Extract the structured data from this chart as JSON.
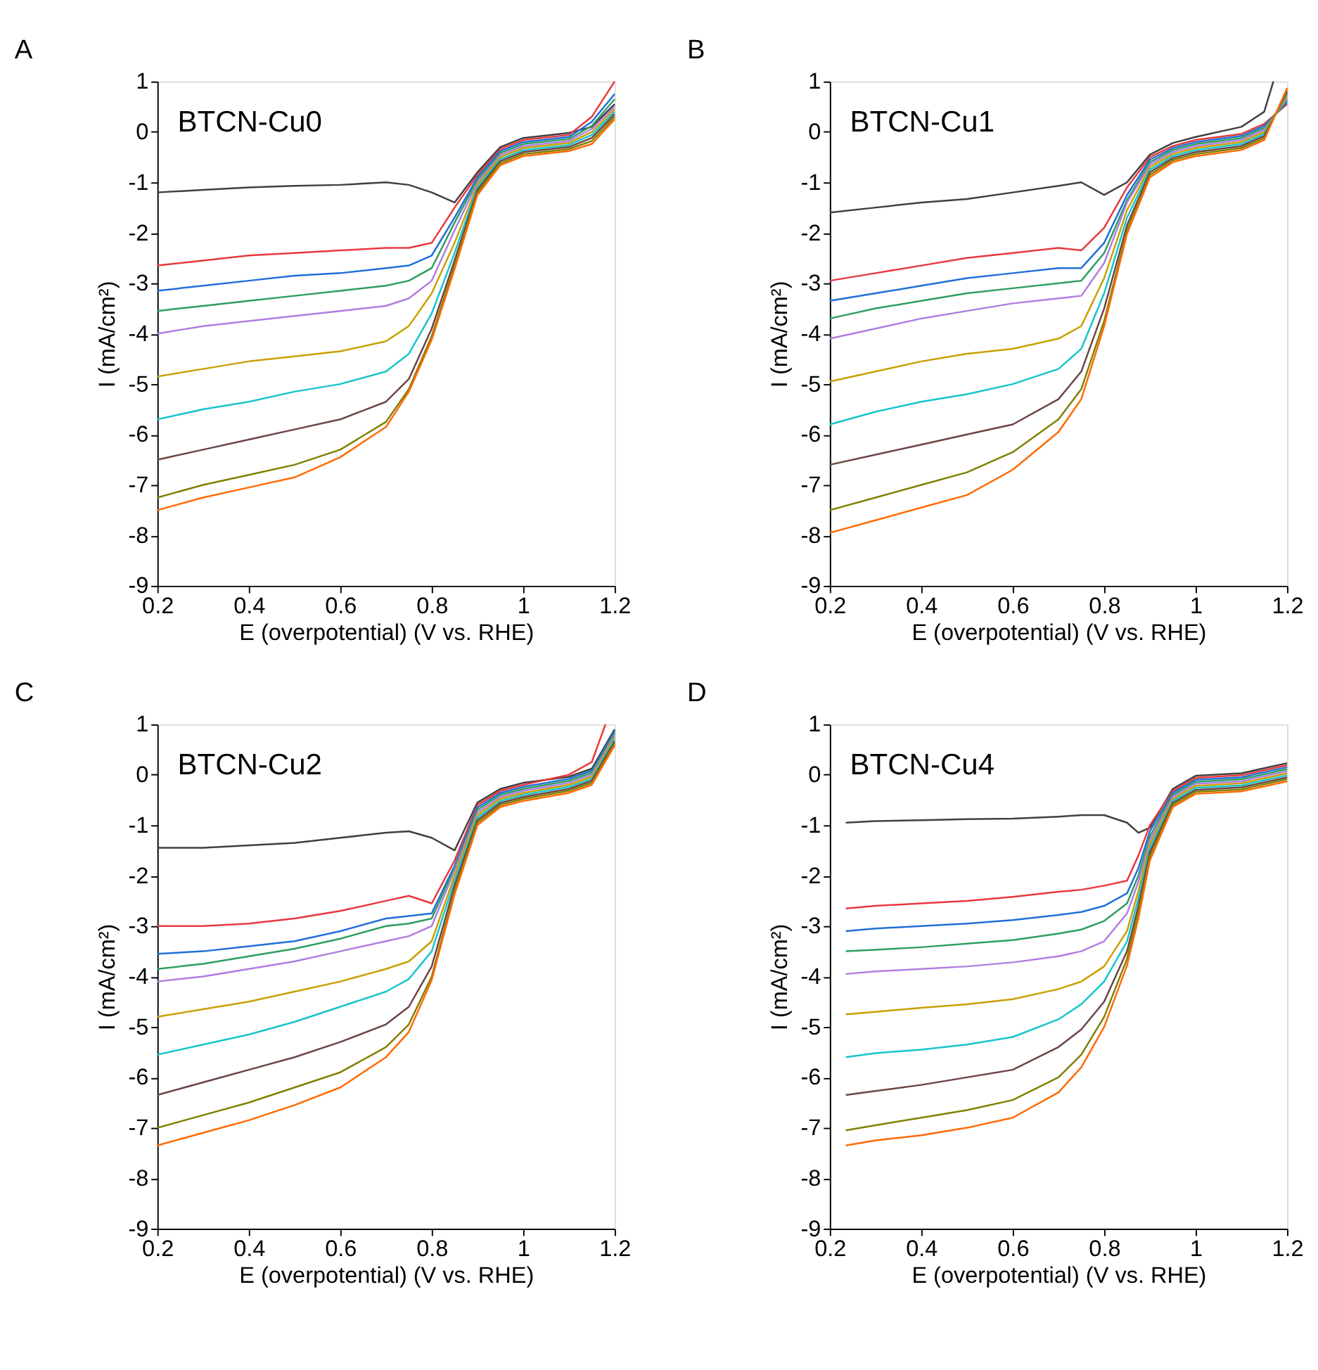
{
  "chart_data": [
    {
      "type": "line",
      "title": "A",
      "annotations": [
        "BTCN-Cu0"
      ],
      "xlabel": "E (overpotential) (V vs. RHE)",
      "ylabel": "I (mA/cm²)",
      "xlim": [
        0.2,
        1.2
      ],
      "ylim": [
        -9,
        1
      ],
      "xticks": [
        0.2,
        0.4,
        0.6,
        0.8,
        1,
        1.2
      ],
      "yticks": [
        -9,
        -8,
        -7,
        -6,
        -5,
        -4,
        -3,
        -2,
        -1,
        0,
        1
      ],
      "grid": false,
      "legend": false,
      "marker": "none",
      "line_style": "solid",
      "x": [
        0.2,
        0.3,
        0.4,
        0.5,
        0.6,
        0.7,
        0.75,
        0.8,
        0.85,
        0.9,
        0.95,
        1.0,
        1.1,
        1.15,
        1.2
      ],
      "series": [
        {
          "color": "#404040",
          "values": [
            -1.2,
            -1.15,
            -1.1,
            -1.07,
            -1.05,
            -1.0,
            -1.05,
            -1.2,
            -1.4,
            -0.8,
            -0.3,
            -0.12,
            -0.02,
            0.1,
            0.55
          ]
        },
        {
          "color": "#e8383d",
          "values": [
            -2.65,
            -2.55,
            -2.45,
            -2.4,
            -2.35,
            -2.3,
            -2.3,
            -2.2,
            -1.5,
            -0.85,
            -0.34,
            -0.16,
            -0.06,
            0.3,
            1.0
          ]
        },
        {
          "color": "#1f6fd6",
          "values": [
            -3.15,
            -3.05,
            -2.95,
            -2.85,
            -2.8,
            -2.7,
            -2.65,
            -2.45,
            -1.7,
            -0.9,
            -0.38,
            -0.2,
            -0.1,
            0.2,
            0.75
          ]
        },
        {
          "color": "#2e9e60",
          "values": [
            -3.55,
            -3.45,
            -3.35,
            -3.25,
            -3.15,
            -3.05,
            -2.95,
            -2.7,
            -1.8,
            -0.95,
            -0.42,
            -0.24,
            -0.14,
            0.12,
            0.65
          ]
        },
        {
          "color": "#b07de0",
          "values": [
            -4.0,
            -3.85,
            -3.75,
            -3.65,
            -3.55,
            -3.45,
            -3.3,
            -2.95,
            -1.95,
            -1.0,
            -0.46,
            -0.28,
            -0.18,
            0.06,
            0.5
          ]
        },
        {
          "color": "#c9a000",
          "values": [
            -4.85,
            -4.7,
            -4.55,
            -4.45,
            -4.35,
            -4.15,
            -3.85,
            -3.2,
            -2.2,
            -1.05,
            -0.5,
            -0.32,
            -0.22,
            0.0,
            0.45
          ]
        },
        {
          "color": "#17c4cc",
          "values": [
            -5.7,
            -5.5,
            -5.35,
            -5.15,
            -5.0,
            -4.75,
            -4.4,
            -3.6,
            -2.4,
            -1.1,
            -0.54,
            -0.36,
            -0.26,
            -0.06,
            0.4
          ]
        },
        {
          "color": "#6b4444",
          "values": [
            -6.5,
            -6.3,
            -6.1,
            -5.9,
            -5.7,
            -5.35,
            -4.9,
            -3.9,
            -2.55,
            -1.15,
            -0.58,
            -0.4,
            -0.3,
            -0.12,
            0.35
          ]
        },
        {
          "color": "#808000",
          "values": [
            -7.25,
            -7.0,
            -6.8,
            -6.6,
            -6.3,
            -5.75,
            -5.1,
            -4.05,
            -2.65,
            -1.2,
            -0.62,
            -0.44,
            -0.34,
            -0.18,
            0.3
          ]
        },
        {
          "color": "#ff6a00",
          "values": [
            -7.5,
            -7.25,
            -7.05,
            -6.85,
            -6.45,
            -5.85,
            -5.15,
            -4.12,
            -2.72,
            -1.25,
            -0.66,
            -0.48,
            -0.38,
            -0.24,
            0.25
          ]
        }
      ]
    },
    {
      "type": "line",
      "title": "B",
      "annotations": [
        "BTCN-Cu1"
      ],
      "xlabel": "E (overpotential) (V vs. RHE)",
      "ylabel": "I (mA/cm²)",
      "xlim": [
        0.2,
        1.2
      ],
      "ylim": [
        -9,
        1
      ],
      "xticks": [
        0.2,
        0.4,
        0.6,
        0.8,
        1,
        1.2
      ],
      "yticks": [
        -9,
        -8,
        -7,
        -6,
        -5,
        -4,
        -3,
        -2,
        -1,
        0,
        1
      ],
      "grid": false,
      "legend": false,
      "marker": "none",
      "line_style": "solid",
      "x": [
        0.2,
        0.3,
        0.4,
        0.5,
        0.6,
        0.7,
        0.75,
        0.8,
        0.85,
        0.9,
        0.95,
        1.0,
        1.1,
        1.15,
        1.2
      ],
      "series": [
        {
          "color": "#404040",
          "x": [
            0.2,
            0.3,
            0.4,
            0.5,
            0.6,
            0.7,
            0.75,
            0.8,
            0.85,
            0.9,
            0.95,
            1.0,
            1.1,
            1.15,
            1.17
          ],
          "values": [
            -1.6,
            -1.5,
            -1.4,
            -1.33,
            -1.2,
            -1.07,
            -1.0,
            -1.25,
            -1.0,
            -0.45,
            -0.22,
            -0.1,
            0.1,
            0.4,
            1.0
          ]
        },
        {
          "color": "#e8383d",
          "values": [
            -2.95,
            -2.8,
            -2.65,
            -2.5,
            -2.4,
            -2.3,
            -2.35,
            -1.9,
            -1.1,
            -0.5,
            -0.28,
            -0.16,
            -0.04,
            0.16,
            0.55
          ]
        },
        {
          "color": "#1f6fd6",
          "values": [
            -3.35,
            -3.2,
            -3.05,
            -2.9,
            -2.8,
            -2.7,
            -2.7,
            -2.2,
            -1.25,
            -0.55,
            -0.32,
            -0.2,
            -0.08,
            0.12,
            0.59
          ]
        },
        {
          "color": "#2e9e60",
          "values": [
            -3.7,
            -3.5,
            -3.35,
            -3.2,
            -3.1,
            -3.0,
            -2.95,
            -2.4,
            -1.35,
            -0.6,
            -0.36,
            -0.24,
            -0.12,
            0.08,
            0.63
          ]
        },
        {
          "color": "#b07de0",
          "values": [
            -4.1,
            -3.9,
            -3.7,
            -3.55,
            -3.4,
            -3.3,
            -3.25,
            -2.6,
            -1.4,
            -0.65,
            -0.4,
            -0.28,
            -0.16,
            0.04,
            0.67
          ]
        },
        {
          "color": "#c9a000",
          "values": [
            -4.95,
            -4.75,
            -4.55,
            -4.4,
            -4.3,
            -4.1,
            -3.85,
            -2.9,
            -1.55,
            -0.7,
            -0.44,
            -0.32,
            -0.2,
            0.0,
            0.71
          ]
        },
        {
          "color": "#17c4cc",
          "values": [
            -5.8,
            -5.55,
            -5.35,
            -5.2,
            -5.0,
            -4.7,
            -4.3,
            -3.2,
            -1.7,
            -0.75,
            -0.48,
            -0.36,
            -0.24,
            -0.04,
            0.75
          ]
        },
        {
          "color": "#6b4444",
          "values": [
            -6.6,
            -6.4,
            -6.2,
            -6.0,
            -5.8,
            -5.3,
            -4.75,
            -3.5,
            -1.85,
            -0.8,
            -0.52,
            -0.4,
            -0.28,
            -0.08,
            0.79
          ]
        },
        {
          "color": "#808000",
          "values": [
            -7.5,
            -7.25,
            -7.0,
            -6.75,
            -6.35,
            -5.7,
            -5.1,
            -3.75,
            -1.95,
            -0.85,
            -0.56,
            -0.44,
            -0.32,
            -0.12,
            0.83
          ]
        },
        {
          "color": "#ff6a00",
          "values": [
            -7.95,
            -7.7,
            -7.45,
            -7.2,
            -6.7,
            -5.95,
            -5.3,
            -3.85,
            -2.02,
            -0.9,
            -0.6,
            -0.48,
            -0.36,
            -0.16,
            0.87
          ]
        }
      ]
    },
    {
      "type": "line",
      "title": "C",
      "annotations": [
        "BTCN-Cu2"
      ],
      "xlabel": "E (overpotential) (V vs. RHE)",
      "ylabel": "I (mA/cm²)",
      "xlim": [
        0.2,
        1.2
      ],
      "ylim": [
        -9,
        1
      ],
      "xticks": [
        0.2,
        0.4,
        0.6,
        0.8,
        1,
        1.2
      ],
      "yticks": [
        -9,
        -8,
        -7,
        -6,
        -5,
        -4,
        -3,
        -2,
        -1,
        0,
        1
      ],
      "grid": false,
      "legend": false,
      "marker": "none",
      "line_style": "solid",
      "x": [
        0.2,
        0.3,
        0.4,
        0.5,
        0.6,
        0.7,
        0.75,
        0.8,
        0.85,
        0.9,
        0.95,
        1.0,
        1.1,
        1.15,
        1.2
      ],
      "series": [
        {
          "color": "#404040",
          "values": [
            -1.45,
            -1.45,
            -1.4,
            -1.35,
            -1.25,
            -1.15,
            -1.12,
            -1.25,
            -1.5,
            -0.55,
            -0.28,
            -0.16,
            -0.04,
            0.12,
            0.9
          ]
        },
        {
          "color": "#e8383d",
          "x": [
            0.2,
            0.3,
            0.4,
            0.5,
            0.6,
            0.7,
            0.75,
            0.8,
            0.85,
            0.9,
            0.95,
            1.0,
            1.1,
            1.15,
            1.18
          ],
          "values": [
            -3.0,
            -3.0,
            -2.95,
            -2.85,
            -2.7,
            -2.5,
            -2.4,
            -2.55,
            -1.7,
            -0.6,
            -0.32,
            -0.2,
            0.0,
            0.25,
            1.0
          ]
        },
        {
          "color": "#1f6fd6",
          "values": [
            -3.55,
            -3.5,
            -3.4,
            -3.3,
            -3.1,
            -2.85,
            -2.8,
            -2.75,
            -1.8,
            -0.65,
            -0.36,
            -0.24,
            -0.08,
            0.08,
            0.86
          ]
        },
        {
          "color": "#2e9e60",
          "values": [
            -3.85,
            -3.75,
            -3.6,
            -3.45,
            -3.25,
            -3.0,
            -2.95,
            -2.85,
            -1.85,
            -0.7,
            -0.4,
            -0.28,
            -0.12,
            0.04,
            0.82
          ]
        },
        {
          "color": "#b07de0",
          "values": [
            -4.1,
            -4.0,
            -3.85,
            -3.7,
            -3.5,
            -3.3,
            -3.2,
            -3.0,
            -1.9,
            -0.75,
            -0.44,
            -0.32,
            -0.16,
            0.0,
            0.78
          ]
        },
        {
          "color": "#c9a000",
          "values": [
            -4.8,
            -4.65,
            -4.5,
            -4.3,
            -4.1,
            -3.85,
            -3.7,
            -3.3,
            -2.0,
            -0.8,
            -0.48,
            -0.36,
            -0.2,
            -0.04,
            0.74
          ]
        },
        {
          "color": "#17c4cc",
          "values": [
            -5.55,
            -5.35,
            -5.15,
            -4.9,
            -4.6,
            -4.3,
            -4.05,
            -3.5,
            -2.1,
            -0.85,
            -0.52,
            -0.4,
            -0.24,
            -0.08,
            0.7
          ]
        },
        {
          "color": "#6b4444",
          "values": [
            -6.35,
            -6.1,
            -5.85,
            -5.6,
            -5.3,
            -4.95,
            -4.6,
            -3.8,
            -2.2,
            -0.9,
            -0.56,
            -0.44,
            -0.28,
            -0.12,
            0.66
          ]
        },
        {
          "color": "#808000",
          "values": [
            -7.0,
            -6.75,
            -6.5,
            -6.2,
            -5.9,
            -5.4,
            -4.95,
            -4.0,
            -2.3,
            -0.95,
            -0.6,
            -0.48,
            -0.32,
            -0.16,
            0.62
          ]
        },
        {
          "color": "#ff6a00",
          "values": [
            -7.35,
            -7.1,
            -6.85,
            -6.55,
            -6.2,
            -5.6,
            -5.1,
            -4.07,
            -2.37,
            -1.0,
            -0.64,
            -0.52,
            -0.36,
            -0.2,
            0.58
          ]
        }
      ]
    },
    {
      "type": "line",
      "title": "D",
      "annotations": [
        "BTCN-Cu4"
      ],
      "xlabel": "E (overpotential) (V vs. RHE)",
      "ylabel": "I (mA/cm²)",
      "xlim": [
        0.2,
        1.2
      ],
      "ylim": [
        -9,
        1
      ],
      "xticks": [
        0.2,
        0.4,
        0.6,
        0.8,
        1,
        1.2
      ],
      "yticks": [
        -9,
        -8,
        -7,
        -6,
        -5,
        -4,
        -3,
        -2,
        -1,
        0,
        1
      ],
      "grid": false,
      "legend": false,
      "marker": "none",
      "line_style": "solid",
      "x": [
        0.235,
        0.3,
        0.4,
        0.5,
        0.6,
        0.7,
        0.75,
        0.8,
        0.85,
        0.875,
        0.9,
        0.95,
        1.0,
        1.1,
        1.2
      ],
      "series": [
        {
          "color": "#404040",
          "values": [
            -0.95,
            -0.92,
            -0.9,
            -0.88,
            -0.87,
            -0.83,
            -0.8,
            -0.8,
            -0.95,
            -1.15,
            -1.05,
            -0.28,
            -0.02,
            0.03,
            0.23
          ]
        },
        {
          "color": "#e8383d",
          "values": [
            -2.65,
            -2.6,
            -2.55,
            -2.5,
            -2.42,
            -2.32,
            -2.28,
            -2.2,
            -2.1,
            -1.6,
            -1.0,
            -0.32,
            -0.06,
            -0.01,
            0.19
          ]
        },
        {
          "color": "#1f6fd6",
          "values": [
            -3.1,
            -3.05,
            -3.0,
            -2.95,
            -2.88,
            -2.78,
            -2.72,
            -2.6,
            -2.35,
            -1.85,
            -1.12,
            -0.36,
            -0.1,
            -0.05,
            0.15
          ]
        },
        {
          "color": "#2e9e60",
          "values": [
            -3.5,
            -3.47,
            -3.42,
            -3.35,
            -3.28,
            -3.15,
            -3.07,
            -2.9,
            -2.55,
            -2.0,
            -1.22,
            -0.4,
            -0.14,
            -0.09,
            0.11
          ]
        },
        {
          "color": "#b07de0",
          "values": [
            -3.95,
            -3.9,
            -3.85,
            -3.8,
            -3.72,
            -3.6,
            -3.5,
            -3.3,
            -2.75,
            -2.12,
            -1.3,
            -0.44,
            -0.18,
            -0.13,
            0.07
          ]
        },
        {
          "color": "#c9a000",
          "values": [
            -4.75,
            -4.7,
            -4.62,
            -4.55,
            -4.45,
            -4.25,
            -4.1,
            -3.8,
            -3.1,
            -2.3,
            -1.38,
            -0.48,
            -0.22,
            -0.17,
            0.03
          ]
        },
        {
          "color": "#17c4cc",
          "values": [
            -5.6,
            -5.52,
            -5.45,
            -5.35,
            -5.2,
            -4.85,
            -4.55,
            -4.1,
            -3.3,
            -2.45,
            -1.46,
            -0.52,
            -0.26,
            -0.21,
            -0.01
          ]
        },
        {
          "color": "#6b4444",
          "values": [
            -6.35,
            -6.27,
            -6.15,
            -6.0,
            -5.85,
            -5.4,
            -5.05,
            -4.5,
            -3.5,
            -2.6,
            -1.54,
            -0.56,
            -0.3,
            -0.25,
            -0.05
          ]
        },
        {
          "color": "#808000",
          "values": [
            -7.05,
            -6.95,
            -6.8,
            -6.65,
            -6.45,
            -6.0,
            -5.55,
            -4.8,
            -3.65,
            -2.72,
            -1.62,
            -0.6,
            -0.34,
            -0.29,
            -0.09
          ]
        },
        {
          "color": "#ff6a00",
          "values": [
            -7.35,
            -7.25,
            -7.15,
            -7.0,
            -6.8,
            -6.3,
            -5.8,
            -5.0,
            -3.78,
            -2.84,
            -1.7,
            -0.64,
            -0.38,
            -0.33,
            -0.13
          ]
        }
      ]
    }
  ]
}
